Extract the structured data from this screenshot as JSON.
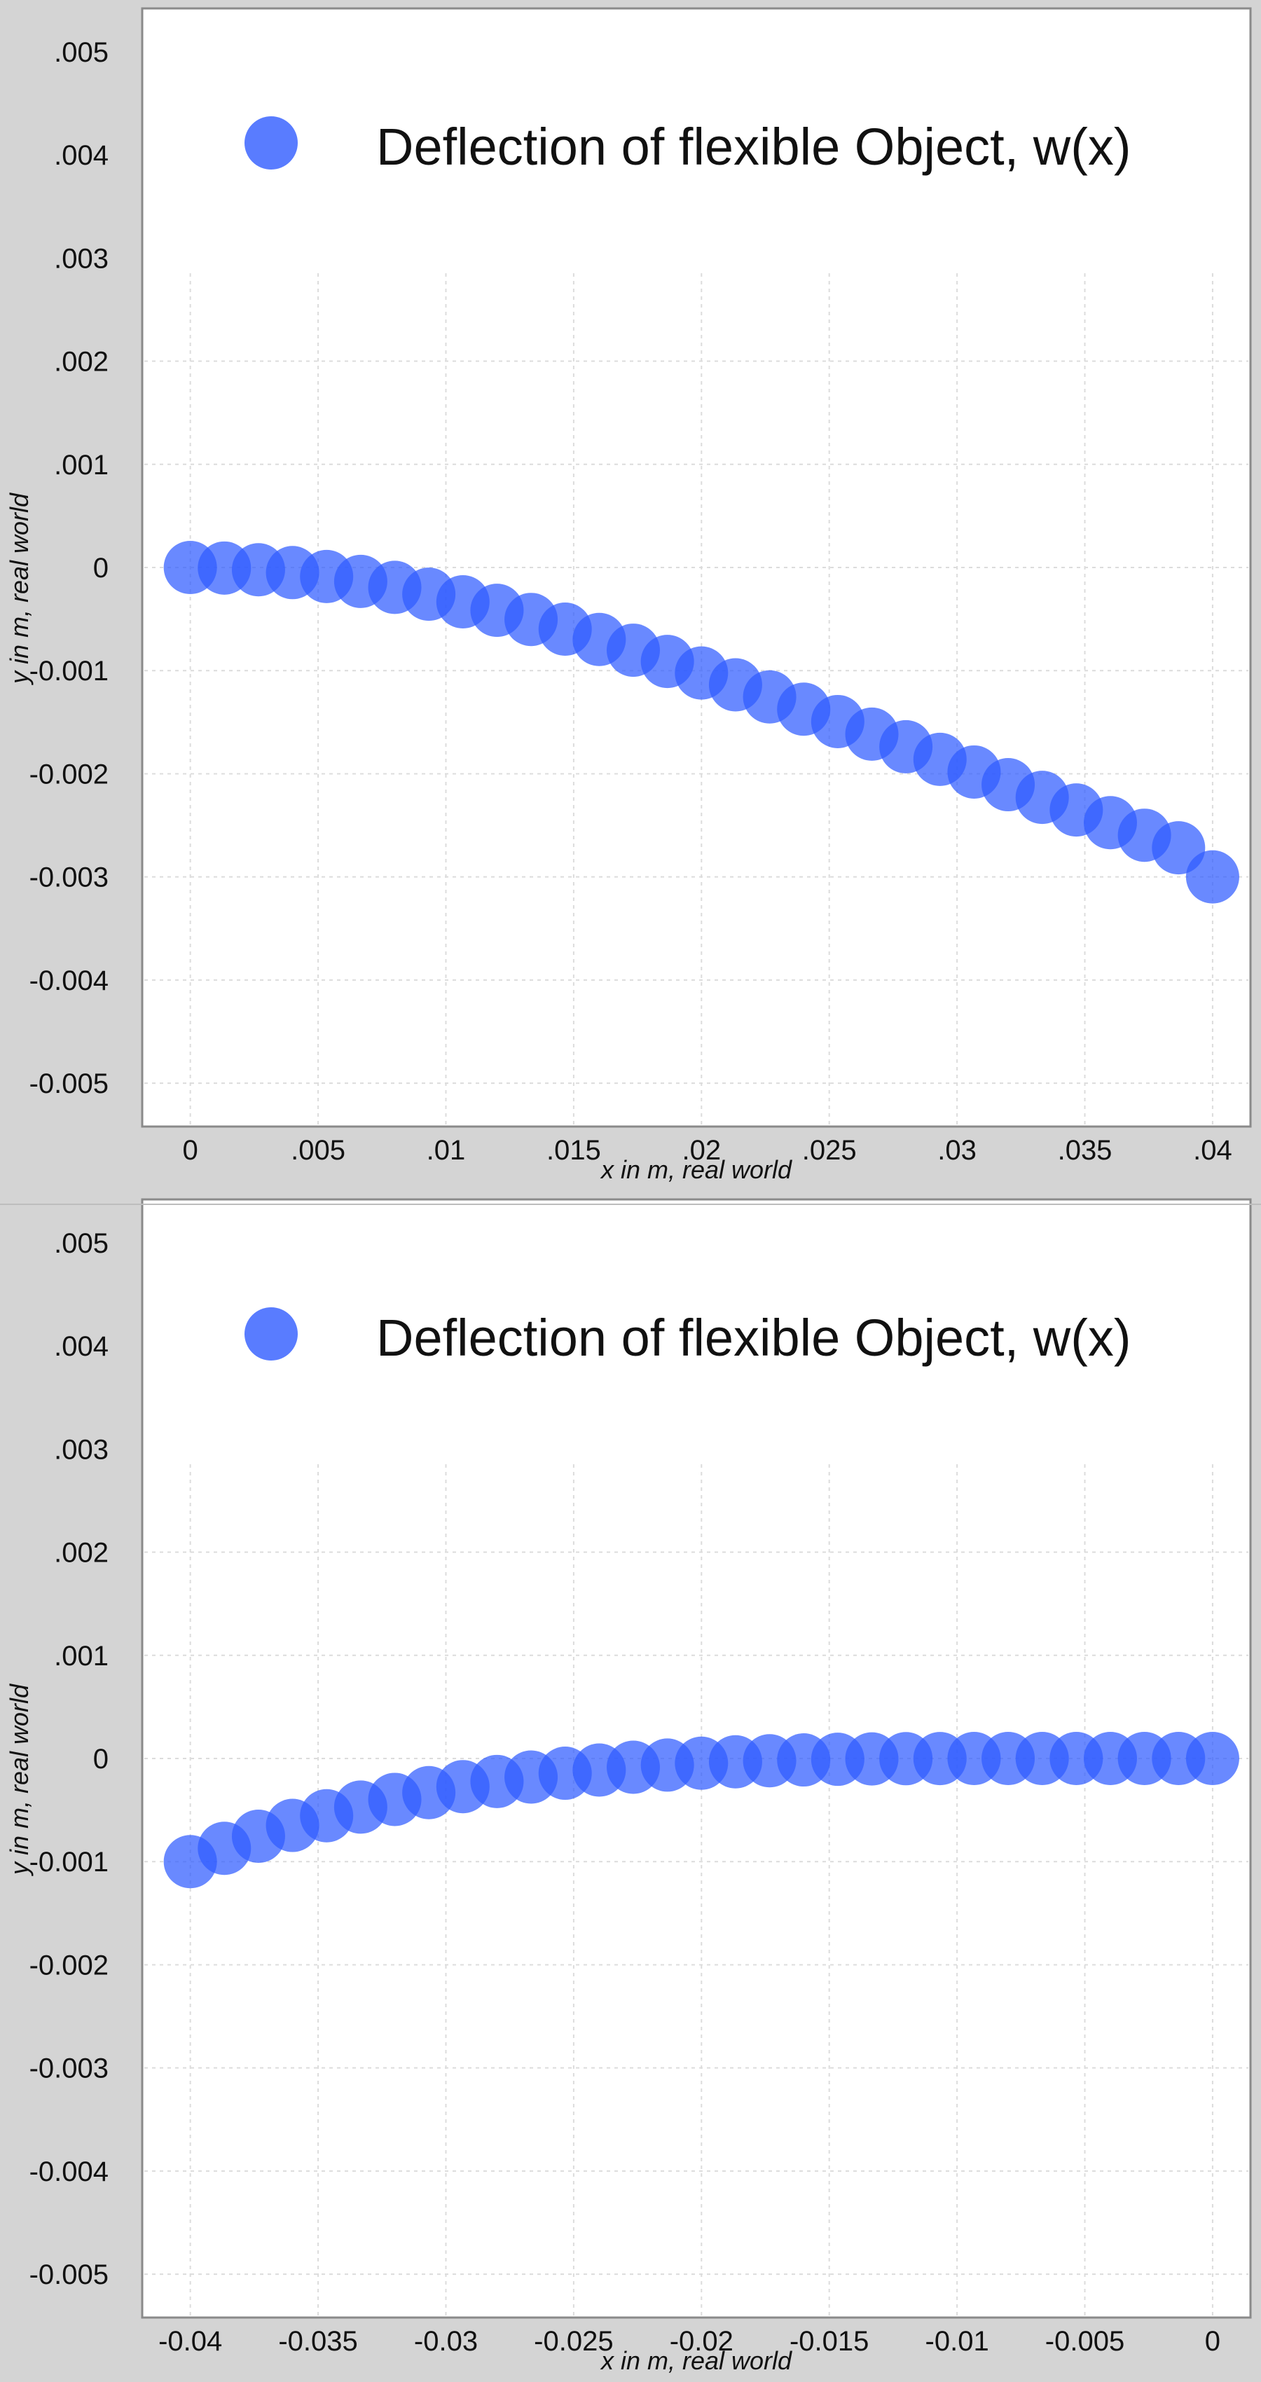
{
  "chart_data": [
    {
      "type": "scatter",
      "legend_position": "top",
      "grid": true,
      "series": [
        {
          "name": "Deflection of flexible Object, w(x)",
          "color": "#2f5bff",
          "points": [
            [
              0.0,
              0.0
            ],
            [
              0.001333,
              -5.6e-06
            ],
            [
              0.002667,
              -2.22e-05
            ],
            [
              0.004,
              -4.96e-05
            ],
            [
              0.005333,
              -8.74e-05
            ],
            [
              0.006667,
              -0.000135
            ],
            [
              0.008,
              -0.000193
            ],
            [
              0.009333,
              -0.000259
            ],
            [
              0.010667,
              -0.000333
            ],
            [
              0.012,
              -0.000415
            ],
            [
              0.013333,
              -0.000504
            ],
            [
              0.014667,
              -0.000598
            ],
            [
              0.016,
              -0.000698
            ],
            [
              0.017333,
              -0.000802
            ],
            [
              0.018667,
              -0.000911
            ],
            [
              0.02,
              -0.001023
            ],
            [
              0.021333,
              -0.001138
            ],
            [
              0.022667,
              -0.001255
            ],
            [
              0.024,
              -0.001374
            ],
            [
              0.025333,
              -0.001494
            ],
            [
              0.026667,
              -0.001616
            ],
            [
              0.028,
              -0.001738
            ],
            [
              0.029333,
              -0.00186
            ],
            [
              0.030667,
              -0.001983
            ],
            [
              0.032,
              -0.002106
            ],
            [
              0.033333,
              -0.002229
            ],
            [
              0.034667,
              -0.002351
            ],
            [
              0.036,
              -0.002474
            ],
            [
              0.037333,
              -0.002596
            ],
            [
              0.038667,
              -0.002718
            ],
            [
              0.04,
              -0.003
            ]
          ]
        }
      ],
      "xlabel": "x in m, real world",
      "ylabel": "y in m, real world",
      "xlim": [
        -0.0018,
        0.0414
      ],
      "ylim": [
        -0.0054,
        0.0054
      ],
      "x_ticks": [
        0,
        0.005,
        0.01,
        0.015,
        0.02,
        0.025,
        0.03,
        0.035,
        0.04
      ],
      "x_tick_labels": [
        "0",
        ".005",
        ".01",
        ".015",
        ".02",
        ".025",
        ".03",
        ".035",
        ".04"
      ],
      "y_ticks": [
        0.005,
        0.004,
        0.003,
        0.002,
        0.001,
        0,
        -0.001,
        -0.002,
        -0.003,
        -0.004,
        -0.005
      ],
      "y_tick_labels": [
        ".005",
        ".004",
        ".003",
        ".002",
        ".001",
        "0",
        "-0.001",
        "-0.002",
        "-0.003",
        "-0.004",
        "-0.005"
      ]
    },
    {
      "type": "scatter",
      "legend_position": "top",
      "grid": true,
      "series": [
        {
          "name": "Deflection of flexible Object, w(x)",
          "color": "#2f5bff",
          "points": [
            [
              -0.04,
              -0.001
            ],
            [
              -0.038667,
              -0.000871
            ],
            [
              -0.037333,
              -0.000754
            ],
            [
              -0.036,
              -0.000649
            ],
            [
              -0.034667,
              -0.000555
            ],
            [
              -0.033333,
              -0.000471
            ],
            [
              -0.032,
              -0.000397
            ],
            [
              -0.030667,
              -0.000331
            ],
            [
              -0.029333,
              -0.000273
            ],
            [
              -0.028,
              -0.000223
            ],
            [
              -0.026667,
              -0.00018
            ],
            [
              -0.025333,
              -0.000143
            ],
            [
              -0.024,
              -0.000112
            ],
            [
              -0.022667,
              -8.5e-05
            ],
            [
              -0.021333,
              -6.4e-05
            ],
            [
              -0.02,
              -4.6e-05
            ],
            [
              -0.018667,
              -3.2e-05
            ],
            [
              -0.017333,
              -2.2e-05
            ],
            [
              -0.016,
              -1.4e-05
            ],
            [
              -0.014667,
              -8e-06
            ],
            [
              -0.013333,
              -4e-06
            ],
            [
              -0.012,
              -2e-06
            ],
            [
              -0.010667,
              -1e-06
            ],
            [
              -0.009333,
              0.0
            ],
            [
              -0.008,
              0.0
            ],
            [
              -0.006667,
              0.0
            ],
            [
              -0.005333,
              0.0
            ],
            [
              -0.004,
              0.0
            ],
            [
              -0.002667,
              0.0
            ],
            [
              -0.001333,
              0.0
            ],
            [
              0.0,
              0.0
            ]
          ]
        }
      ],
      "xlabel": "x in m, real world",
      "ylabel": "y in m, real world",
      "xlim": [
        -0.0418,
        0.0014
      ],
      "ylim": [
        -0.0054,
        0.0054
      ],
      "x_ticks": [
        -0.04,
        -0.035,
        -0.03,
        -0.025,
        -0.02,
        -0.015,
        -0.01,
        -0.005,
        0
      ],
      "x_tick_labels": [
        "-0.04",
        "-0.035",
        "-0.03",
        "-0.025",
        "-0.02",
        "-0.015",
        "-0.01",
        "-0.005",
        "0"
      ],
      "y_ticks": [
        0.005,
        0.004,
        0.003,
        0.002,
        0.001,
        0,
        -0.001,
        -0.002,
        -0.003,
        -0.004,
        -0.005
      ],
      "y_tick_labels": [
        ".005",
        ".004",
        ".003",
        ".002",
        ".001",
        "0",
        "-0.001",
        "-0.002",
        "-0.003",
        "-0.004",
        "-0.005"
      ]
    }
  ]
}
